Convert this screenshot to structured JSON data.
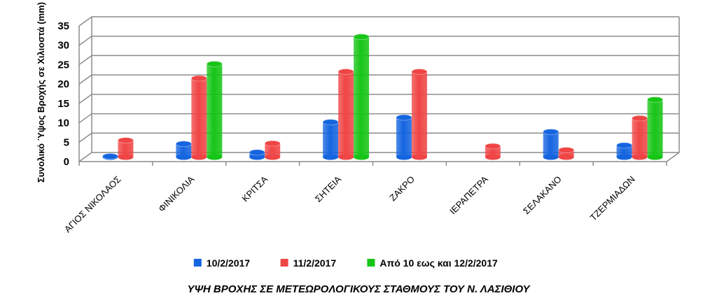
{
  "chart_data": {
    "type": "bar",
    "title": "ΥΨΗ ΒΡΟΧΗΣ ΣΕ ΜΕΤΕΩΡΟΛΟΓΙΚΟΥΣ ΣΤΑΘΜΟΥΣ ΤΟΥ Ν. ΛΑΣΙΘΙΟΥ",
    "ylabel": "Συνολικό Ύψος Βροχής σε Χιλιοστά (mm)",
    "xlabel": "",
    "ylim": [
      0,
      35
    ],
    "yticks": [
      0,
      5,
      10,
      15,
      20,
      25,
      30,
      35
    ],
    "grid": true,
    "legend_position": "bottom",
    "categories": [
      "ΑΓΙΟΣ ΝΙΚΟΛΑΟΣ",
      "ΦΙΝΙΚΟΛΙΑ",
      "ΚΡΙΤΣΑ",
      "ΣΗΤΕΙΑ",
      "ΖΑΚΡΟ",
      "ΙΕΡΑΠΕΤΡΑ",
      "ΣΕΛΑΚΑΝΟ",
      "ΤΖΕΡΜΙΑΔΩΝ"
    ],
    "series": [
      {
        "name": "10/2/2017",
        "color": "#1565e0",
        "values": [
          0.2,
          3.4,
          1.2,
          9.0,
          10.2,
          null,
          6.5,
          3.0
        ]
      },
      {
        "name": "11/2/2017",
        "color": "#f04545",
        "values": [
          4.3,
          20.3,
          3.5,
          22.0,
          22.0,
          2.8,
          1.8,
          10.0
        ]
      },
      {
        "name": "Από 10 εως και 12/2/2017",
        "color": "#17c517",
        "values": [
          null,
          24.0,
          null,
          31.0,
          null,
          null,
          null,
          14.8
        ]
      }
    ]
  }
}
